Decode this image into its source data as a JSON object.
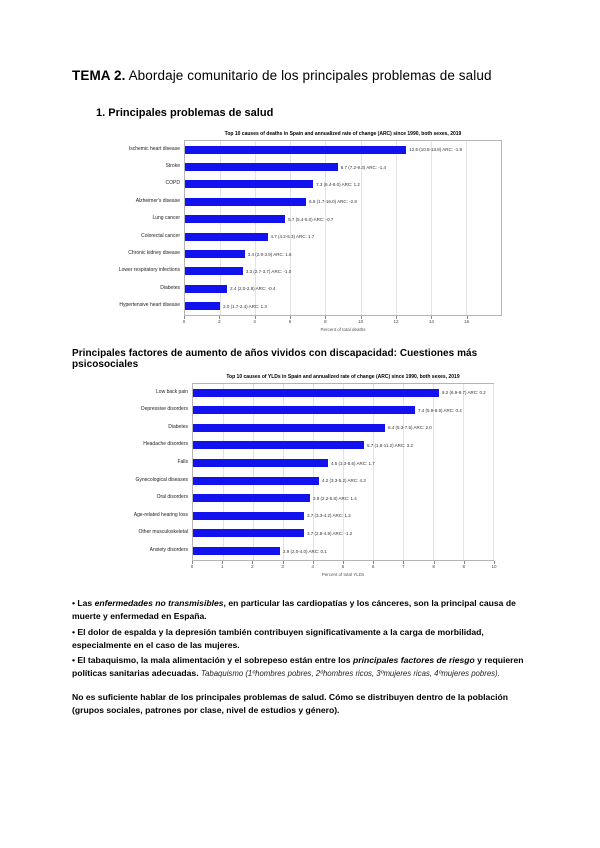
{
  "page": {
    "title_bold": "TEMA 2.",
    "title_rest": " Abordaje comunitario de los principales problemas de salud",
    "list_item": "1. Principales problemas de salud",
    "section_heading": "Principales factores de aumento de años vividos con discapacidad: Cuestiones más psicosociales"
  },
  "chart_data": [
    {
      "type": "bar",
      "title": "Top 10 causes of deaths in Spain and annualized rate of change (ARC) since 1990, both sexes, 2019",
      "xlabel": "Percent of total deaths",
      "xlim": [
        0,
        18
      ],
      "xticks": [
        0,
        2,
        4,
        6,
        8,
        10,
        12,
        14,
        16
      ],
      "bar_color": "#1212ee",
      "grid": true,
      "legend": "none",
      "categories": [
        "Ischemic heart disease",
        "Stroke",
        "COPD",
        "Alzheimer's disease",
        "Lung cancer",
        "Colorectal cancer",
        "Chronic kidney disease",
        "Lower respiratory infections",
        "Diabetes",
        "Hypertensive heart disease"
      ],
      "values": [
        12.6,
        8.7,
        7.3,
        6.9,
        5.7,
        4.7,
        3.4,
        3.3,
        2.4,
        2.0
      ],
      "bar_labels": [
        "12.6 (10.8-13.8) ARC: -1.9",
        "8.7 (7.2-9.3) ARC: -1.4",
        "7.3 (6.4-8.0) ARC: 1.2",
        "6.9 (1.7-16.0) ARC: -2.8",
        "5.7 (5.4-6.0) ARC: -0.7",
        "4.7 (4.2-5.3) ARC: 1.7",
        "3.4 (2.9-3.9) ARC: 1.6",
        "3.3 (2.7-3.7) ARC: -1.0",
        "2.4 (2.0-2.8) ARC: -0.4",
        "2.0 (1.7-2.4) ARC: 1.3"
      ]
    },
    {
      "type": "bar",
      "title": "Top 10 causes of YLDs in Spain and annualized rate of change (ARC) since 1990, both sexes, 2019",
      "xlabel": "Percent of total YLDs",
      "xlim": [
        0,
        10
      ],
      "xticks": [
        0,
        1,
        2,
        3,
        4,
        5,
        6,
        7,
        8,
        9,
        10
      ],
      "bar_color": "#1212ee",
      "grid": true,
      "legend": "none",
      "categories": [
        "Low back pain",
        "Depressive disorders",
        "Diabetes",
        "Headache disorders",
        "Falls",
        "Gynecological diseases",
        "Oral disorders",
        "Age-related hearing loss",
        "Other musculoskeletal",
        "Anxiety disorders"
      ],
      "values": [
        8.2,
        7.4,
        6.4,
        5.7,
        4.5,
        4.2,
        3.9,
        3.7,
        3.7,
        2.9
      ],
      "bar_labels": [
        "8.2 (6.9-9.7) ARC: 0.2",
        "7.4 (5.9-8.9) ARC: 0.4",
        "6.4 (5.3-7.5) ARC: 2.0",
        "5.7 (1.8-11.2) ARC: 3.2",
        "4.5 (3.3-5.6) ARC: 1.7",
        "4.2 (3.3-5.2) ARC: 4.3",
        "3.9 (2.2-5.8) ARC: 1.4",
        "3.7 (3.3-4.2) ARC: 1.2",
        "3.7 (2.8-4.9) ARC: -1.2",
        "2.9 (2.0-4.0) ARC: 0.1"
      ]
    }
  ],
  "paragraphs": [
    {
      "name": "bullet-ncd",
      "closing": false,
      "segments": [
        {
          "style": "b",
          "text": "• Las "
        },
        {
          "style": "bi",
          "text": "enfermedades no transmisibles"
        },
        {
          "style": "b",
          "text": ", en particular las cardiopatías y los cánceres, son la principal causa de muerte y enfermedad en España."
        }
      ]
    },
    {
      "name": "bullet-back-pain",
      "closing": false,
      "segments": [
        {
          "style": "b",
          "text": "• El dolor de espalda y la depresión también contribuyen significativamente a la carga de morbilidad, especialmente en el caso de las mujeres."
        }
      ]
    },
    {
      "name": "bullet-risk-factors",
      "closing": false,
      "segments": [
        {
          "style": "b",
          "text": "• El tabaquismo, la mala alimentación y el sobrepeso están entre los "
        },
        {
          "style": "bi",
          "text": "principales factores de riesgo"
        },
        {
          "style": "b",
          "text": " y requieren políticas sanitarias adecuadas. "
        },
        {
          "style": "note",
          "text": "Tabaquismo (1ºhombres pobres, 2ºhombres ricos, 3ºmujeres ricas, 4ºmujeres pobres)."
        }
      ]
    },
    {
      "name": "closing-paragraph",
      "closing": true,
      "segments": [
        {
          "style": "b",
          "text": "No es suficiente hablar de los principales problemas de salud. Cómo se distribuyen dentro de la población (grupos sociales, patrones por clase, nivel de estudios y género)."
        }
      ]
    }
  ]
}
